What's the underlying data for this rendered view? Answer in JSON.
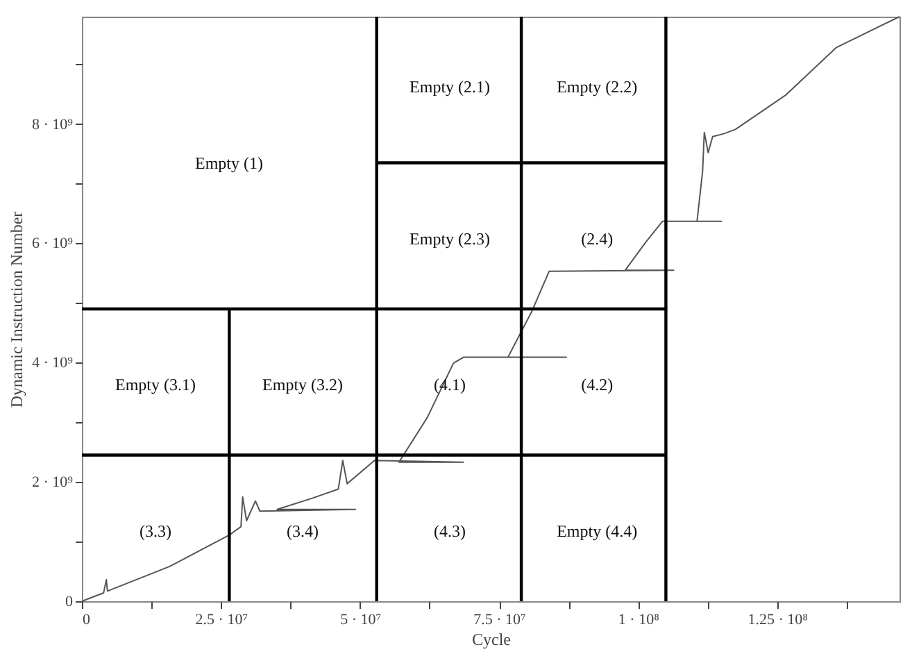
{
  "chart_data": {
    "type": "line",
    "xlabel": "Cycle",
    "ylabel": "Dynamic Instruction Number",
    "xlim": [
      0,
      147000000
    ],
    "ylim": [
      0,
      9800000000
    ],
    "xticks": [
      0,
      {
        "value": 12500000,
        "label": null
      },
      {
        "value": 25000000,
        "label": "2.5 · 10⁷"
      },
      {
        "value": 37500000,
        "label": null
      },
      {
        "value": 50000000,
        "label": "5 · 10⁷"
      },
      {
        "value": 62500000,
        "label": null
      },
      {
        "value": 75000000,
        "label": "7.5 · 10⁷"
      },
      {
        "value": 87500000,
        "label": null
      },
      {
        "value": 100000000,
        "label": "1 · 10⁸"
      },
      {
        "value": 112500000,
        "label": null
      },
      {
        "value": 125000000,
        "label": "1.25 · 10⁸"
      },
      {
        "value": 137500000,
        "label": null
      }
    ],
    "yticks": [
      0,
      {
        "value": 1000000000,
        "label": null
      },
      {
        "value": 2000000000,
        "label": "2 · 10⁹"
      },
      {
        "value": 3000000000,
        "label": null
      },
      {
        "value": 4000000000,
        "label": "4 · 10⁹"
      },
      {
        "value": 5000000000,
        "label": null
      },
      {
        "value": 6000000000,
        "label": "6 · 10⁹"
      },
      {
        "value": 7000000000,
        "label": null
      },
      {
        "value": 8000000000,
        "label": "8 · 10⁹"
      },
      {
        "value": 9000000000,
        "label": null
      }
    ],
    "grid": false,
    "marker": "none",
    "line_style": "solid",
    "series": [
      {
        "color": "#555555",
        "x": [
          0,
          3900000,
          4400000,
          4600000,
          15700000,
          26500000,
          28600000,
          28900000,
          29600000,
          31200000,
          32000000,
          49200000,
          35100000,
          41500000,
          46100000,
          46900000,
          47700000,
          52600000,
          68600000,
          57000000,
          62100000,
          66800000,
          68600000,
          87100000,
          76600000,
          80900000,
          84000000,
          106400000,
          97700000,
          101300000,
          104400000,
          115000000,
          110600000,
          111600000,
          111900000,
          112600000,
          113400000,
          115500000,
          117500000,
          126600000,
          135600000,
          147000000
        ],
        "values": [
          0,
          140000000,
          360000000,
          170000000,
          580000000,
          1110000000,
          1250000000,
          1750000000,
          1350000000,
          1680000000,
          1510000000,
          1540000000,
          1540000000,
          1730000000,
          1880000000,
          2360000000,
          1970000000,
          2360000000,
          2330000000,
          2330000000,
          3080000000,
          3990000000,
          4090000000,
          4090000000,
          4090000000,
          4860000000,
          5530000000,
          5550000000,
          5550000000,
          6010000000,
          6370000000,
          6370000000,
          6370000000,
          7210000000,
          7860000000,
          7520000000,
          7790000000,
          7840000000,
          7910000000,
          8490000000,
          9280000000,
          9800000000
        ]
      },
      {
        "color": "#000000",
        "x": [
          53000000,
          53000000
        ],
        "values": [
          0,
          9800000000
        ]
      },
      {
        "color": "#000000",
        "x": [
          79000000,
          79000000
        ],
        "values": [
          0,
          9800000000
        ]
      },
      {
        "color": "#000000",
        "x": [
          105000000,
          105000000
        ],
        "values": [
          0,
          9800000000
        ]
      },
      {
        "color": "#000000",
        "x": [
          26500000,
          26500000
        ],
        "values": [
          0,
          4900000000
        ]
      },
      {
        "color": "#000000",
        "x": [
          0,
          105000000
        ],
        "values": [
          4900000000,
          4900000000
        ]
      },
      {
        "color": "#000000",
        "x": [
          0,
          105000000
        ],
        "values": [
          2450000000,
          2450000000
        ]
      },
      {
        "color": "#000000",
        "x": [
          53000000,
          105000000
        ],
        "values": [
          7350000000,
          7350000000
        ]
      }
    ],
    "annotations": [
      "Empty (1)",
      "Empty (2.1)",
      "Empty (2.2)",
      "Empty (2.3)",
      "(2.4)",
      "Empty (3.1)",
      "Empty (3.2)",
      "(4.1)",
      "(4.2)",
      "(3.3)",
      "(3.4)",
      "(4.3)",
      "Empty (4.4)"
    ]
  }
}
